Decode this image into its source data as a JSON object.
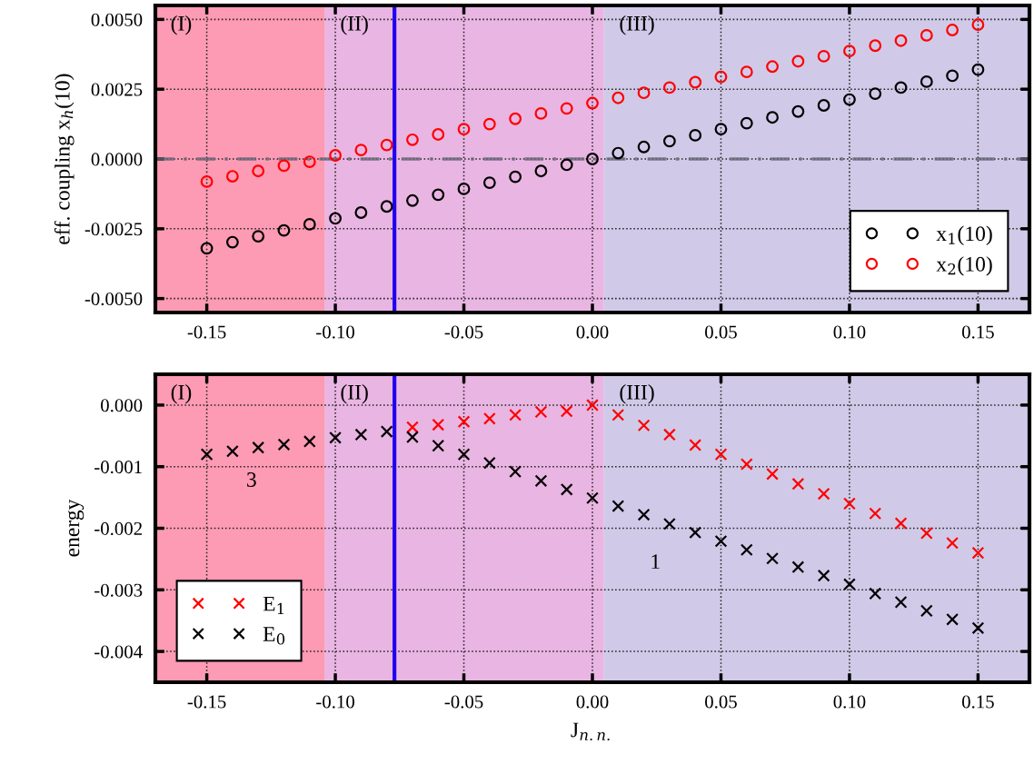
{
  "chart_data": [
    {
      "type": "scatter",
      "ylabel": "eff. coupling x$_{h}$(10)",
      "marker": "circle",
      "grid": true,
      "legend": "bottom right",
      "xlim": [
        -0.17,
        0.17
      ],
      "ylim": [
        -0.0055,
        0.0055
      ],
      "xticks": [
        {
          "value": -0.15,
          "label": "-0.15"
        },
        {
          "value": -0.1,
          "label": "-0.10"
        },
        {
          "value": -0.05,
          "label": "-0.05"
        },
        {
          "value": 0.0,
          "label": "0.00"
        },
        {
          "value": 0.05,
          "label": "0.05"
        },
        {
          "value": 0.1,
          "label": "0.10"
        },
        {
          "value": 0.15,
          "label": "0.15"
        }
      ],
      "yticks": [
        {
          "value": -0.005,
          "label": "-0.0050"
        },
        {
          "value": -0.0025,
          "label": "-0.0025"
        },
        {
          "value": 0.0,
          "label": "0.0000"
        },
        {
          "value": 0.0025,
          "label": "0.0025"
        },
        {
          "value": 0.005,
          "label": "0.0050"
        }
      ],
      "bands": [
        {
          "axis": "x",
          "from": -0.17,
          "to": -0.104,
          "label": "(I)",
          "color": "#fd9ab4"
        },
        {
          "axis": "x",
          "from": -0.104,
          "to": 0.0045,
          "label": "(II)",
          "color": "#e9b5e2"
        },
        {
          "axis": "x",
          "from": 0.0045,
          "to": 0.17,
          "label": "(III)",
          "color": "#d0cae8"
        }
      ],
      "ref_lines": [
        {
          "axis": "x",
          "value": -0.077,
          "color": "#2200ee",
          "line_style": "solid"
        },
        {
          "axis": "y",
          "value": 0.0,
          "color": "#666677",
          "line_style": "dashed"
        }
      ],
      "series": [
        {
          "name": "x$_{1}$(10)",
          "color": "#000000",
          "x": [
            -0.15,
            -0.14,
            -0.13,
            -0.12,
            -0.11,
            -0.1,
            -0.09,
            -0.08,
            -0.07,
            -0.06,
            -0.05,
            -0.04,
            -0.03,
            -0.02,
            -0.01,
            0.0,
            0.01,
            0.02,
            0.03,
            0.04,
            0.05,
            0.06,
            0.07,
            0.08,
            0.09,
            0.1,
            0.11,
            0.12,
            0.13,
            0.14,
            0.15
          ],
          "values": [
            -0.0032,
            -0.00298,
            -0.00277,
            -0.00256,
            -0.00234,
            -0.00213,
            -0.00192,
            -0.0017,
            -0.00149,
            -0.00128,
            -0.00107,
            -0.00085,
            -0.00064,
            -0.00043,
            -0.00021,
            0.0,
            0.00021,
            0.00043,
            0.00064,
            0.00085,
            0.00107,
            0.00128,
            0.00149,
            0.0017,
            0.00192,
            0.00213,
            0.00234,
            0.00256,
            0.00277,
            0.00298,
            0.0032
          ]
        },
        {
          "name": "x$_{2}$(10)",
          "color": "#ff0000",
          "x": [
            -0.15,
            -0.14,
            -0.13,
            -0.12,
            -0.11,
            -0.1,
            -0.09,
            -0.08,
            -0.07,
            -0.06,
            -0.05,
            -0.04,
            -0.03,
            -0.02,
            -0.01,
            0.0,
            0.01,
            0.02,
            0.03,
            0.04,
            0.05,
            0.06,
            0.07,
            0.08,
            0.09,
            0.1,
            0.11,
            0.12,
            0.13,
            0.14,
            0.15
          ],
          "values": [
            -0.00081,
            -0.00062,
            -0.00043,
            -0.00024,
            -0.0001,
            0.00013,
            0.00032,
            0.0005,
            0.00069,
            0.00088,
            0.00107,
            0.00125,
            0.00144,
            0.00163,
            0.00181,
            0.002,
            0.00219,
            0.00237,
            0.00256,
            0.00275,
            0.00294,
            0.00312,
            0.00331,
            0.0035,
            0.00368,
            0.00387,
            0.00406,
            0.00424,
            0.00443,
            0.00462,
            0.00481
          ]
        }
      ]
    },
    {
      "type": "scatter",
      "xlabel": "J$_{n.n.}$",
      "ylabel": "energy",
      "marker": "cross",
      "grid": true,
      "legend": "bottom left",
      "xlim": [
        -0.17,
        0.17
      ],
      "ylim": [
        -0.0045,
        0.0005
      ],
      "xticks": [
        {
          "value": -0.15,
          "label": "-0.15"
        },
        {
          "value": -0.1,
          "label": "-0.10"
        },
        {
          "value": -0.05,
          "label": "-0.05"
        },
        {
          "value": 0.0,
          "label": "0.00"
        },
        {
          "value": 0.05,
          "label": "0.05"
        },
        {
          "value": 0.1,
          "label": "0.10"
        },
        {
          "value": 0.15,
          "label": "0.15"
        }
      ],
      "yticks": [
        {
          "value": -0.004,
          "label": "-0.004"
        },
        {
          "value": -0.003,
          "label": "-0.003"
        },
        {
          "value": -0.002,
          "label": "-0.002"
        },
        {
          "value": -0.001,
          "label": "-0.001"
        },
        {
          "value": 0.0,
          "label": "0.000"
        }
      ],
      "bands": [
        {
          "axis": "x",
          "from": -0.17,
          "to": -0.104,
          "label": "(I)",
          "color": "#fd9ab4"
        },
        {
          "axis": "x",
          "from": -0.104,
          "to": 0.0045,
          "label": "(II)",
          "color": "#e9b5e2"
        },
        {
          "axis": "x",
          "from": 0.0045,
          "to": 0.17,
          "label": "(III)",
          "color": "#d0cae8"
        }
      ],
      "ref_lines": [
        {
          "axis": "x",
          "value": -0.077,
          "color": "#2200ee",
          "line_style": "solid"
        }
      ],
      "annotations": [
        "3",
        "1"
      ],
      "series": [
        {
          "name": "E$_{1}$",
          "color": "#ff0000",
          "x": [
            -0.07,
            -0.06,
            -0.05,
            -0.04,
            -0.03,
            -0.02,
            -0.01,
            0.0,
            0.01,
            0.02,
            0.03,
            0.04,
            0.05,
            0.06,
            0.07,
            0.08,
            0.09,
            0.1,
            0.11,
            0.12,
            0.13,
            0.14,
            0.15
          ],
          "values": [
            -0.00036,
            -0.00032,
            -0.00027,
            -0.00022,
            -0.00016,
            -0.00011,
            -0.0001,
            0.0,
            -0.00016,
            -0.00033,
            -0.00048,
            -0.00065,
            -0.0008,
            -0.00096,
            -0.00112,
            -0.00128,
            -0.00144,
            -0.0016,
            -0.00176,
            -0.00192,
            -0.00208,
            -0.00224,
            -0.0024
          ]
        },
        {
          "name": "E$_{0}$",
          "color": "#000000",
          "x": [
            -0.15,
            -0.14,
            -0.13,
            -0.12,
            -0.11,
            -0.1,
            -0.09,
            -0.08,
            -0.07,
            -0.06,
            -0.05,
            -0.04,
            -0.03,
            -0.02,
            -0.01,
            0.0,
            0.01,
            0.02,
            0.03,
            0.04,
            0.05,
            0.06,
            0.07,
            0.08,
            0.09,
            0.1,
            0.11,
            0.12,
            0.13,
            0.14,
            0.15
          ],
          "values": [
            -0.0008,
            -0.00075,
            -0.00069,
            -0.00064,
            -0.00059,
            -0.00053,
            -0.00048,
            -0.00043,
            -0.00052,
            -0.00066,
            -0.0008,
            -0.00094,
            -0.00108,
            -0.00123,
            -0.00137,
            -0.00151,
            -0.00164,
            -0.00178,
            -0.00193,
            -0.00207,
            -0.00221,
            -0.00235,
            -0.00249,
            -0.00263,
            -0.00277,
            -0.00291,
            -0.00306,
            -0.0032,
            -0.00334,
            -0.00348,
            -0.00362
          ]
        }
      ]
    }
  ]
}
